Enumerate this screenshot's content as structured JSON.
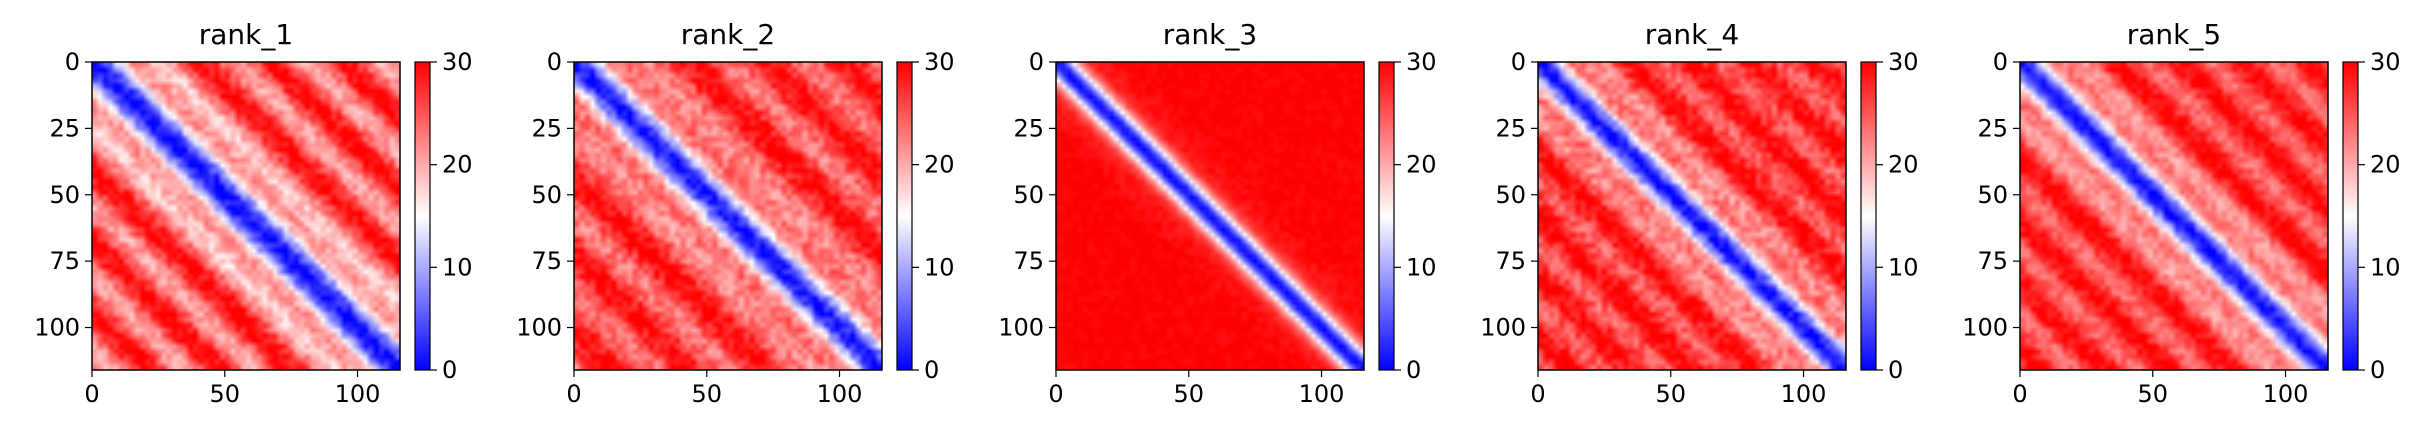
{
  "chart_data": [
    {
      "type": "heatmap",
      "title": "rank_1",
      "xlim": [
        0,
        116
      ],
      "ylim": [
        116,
        0
      ],
      "xticks": [
        0,
        50,
        100
      ],
      "yticks": [
        0,
        25,
        50,
        75,
        100
      ],
      "colorbar": {
        "min": 0,
        "max": 30,
        "ticks": [
          0,
          10,
          20,
          30
        ],
        "colormap": "bwr"
      },
      "pattern": {
        "diagonal_width": 5,
        "band_period": 27,
        "band_strength": 0.6,
        "far_floor": 0.45,
        "noise": 0.18
      }
    },
    {
      "type": "heatmap",
      "title": "rank_2",
      "xlim": [
        0,
        116
      ],
      "ylim": [
        116,
        0
      ],
      "xticks": [
        0,
        50,
        100
      ],
      "yticks": [
        0,
        25,
        50,
        75,
        100
      ],
      "colorbar": {
        "min": 0,
        "max": 30,
        "ticks": [
          0,
          10,
          20,
          30
        ],
        "colormap": "bwr"
      },
      "pattern": {
        "diagonal_width": 5,
        "band_period": 29,
        "band_strength": 0.45,
        "far_floor": 0.55,
        "noise": 0.2
      }
    },
    {
      "type": "heatmap",
      "title": "rank_3",
      "xlim": [
        0,
        116
      ],
      "ylim": [
        116,
        0
      ],
      "xticks": [
        0,
        50,
        100
      ],
      "yticks": [
        0,
        25,
        50,
        75,
        100
      ],
      "colorbar": {
        "min": 0,
        "max": 30,
        "ticks": [
          0,
          10,
          20,
          30
        ],
        "colormap": "bwr"
      },
      "pattern": {
        "diagonal_width": 5,
        "band_period": 40,
        "band_strength": 0.0,
        "far_floor": 0.92,
        "noise": 0.06
      }
    },
    {
      "type": "heatmap",
      "title": "rank_4",
      "xlim": [
        0,
        116
      ],
      "ylim": [
        116,
        0
      ],
      "xticks": [
        0,
        50,
        100
      ],
      "yticks": [
        0,
        25,
        50,
        75,
        100
      ],
      "colorbar": {
        "min": 0,
        "max": 30,
        "ticks": [
          0,
          10,
          20,
          30
        ],
        "colormap": "bwr"
      },
      "pattern": {
        "diagonal_width": 5,
        "band_period": 23,
        "band_strength": 0.35,
        "far_floor": 0.65,
        "noise": 0.2
      }
    },
    {
      "type": "heatmap",
      "title": "rank_5",
      "xlim": [
        0,
        116
      ],
      "ylim": [
        116,
        0
      ],
      "xticks": [
        0,
        50,
        100
      ],
      "yticks": [
        0,
        25,
        50,
        75,
        100
      ],
      "colorbar": {
        "min": 0,
        "max": 30,
        "ticks": [
          0,
          10,
          20,
          30
        ],
        "colormap": "bwr"
      },
      "pattern": {
        "diagonal_width": 5,
        "band_period": 24,
        "band_strength": 0.4,
        "far_floor": 0.62,
        "noise": 0.15
      }
    }
  ]
}
